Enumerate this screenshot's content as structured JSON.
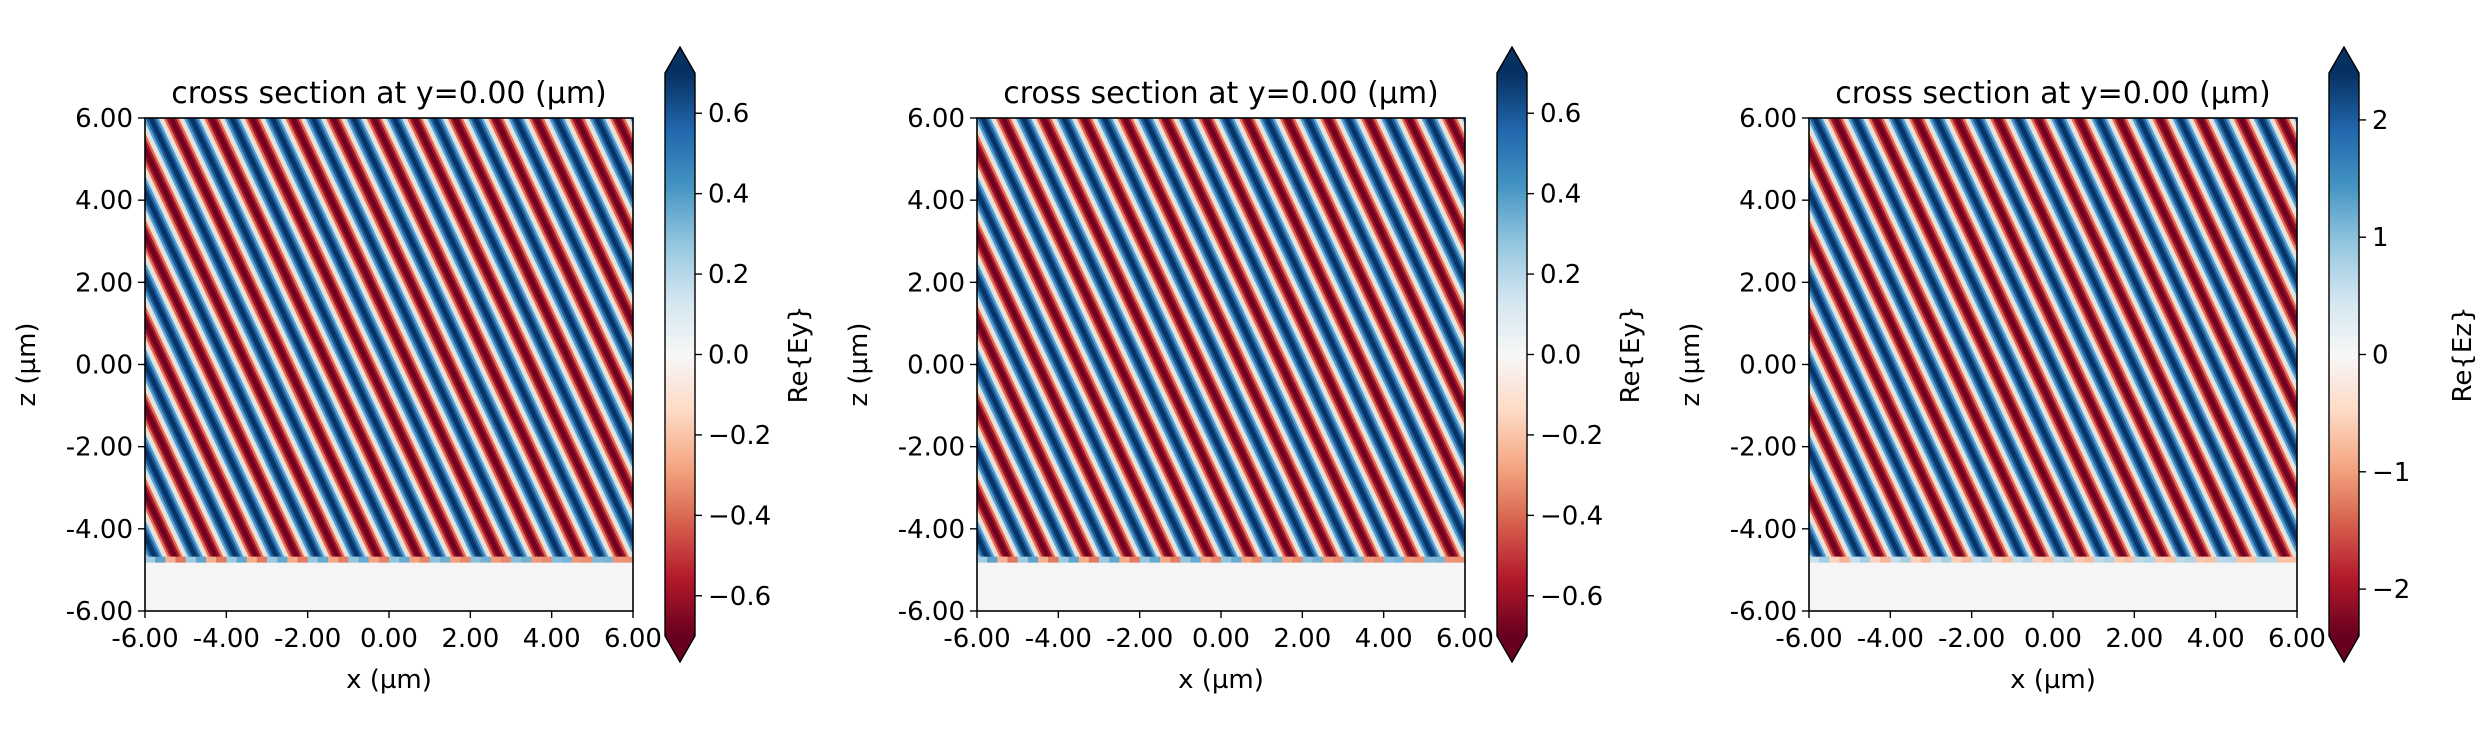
{
  "chart_data": [
    {
      "type": "heatmap",
      "title": "cross section at y=0.00 (µm)",
      "xlabel": "x (µm)",
      "ylabel": "z (µm)",
      "xlim": [
        -6.0,
        6.0
      ],
      "ylim": [
        -6.0,
        6.0
      ],
      "xticks": [
        -6.0,
        -4.0,
        -2.0,
        0.0,
        2.0,
        4.0,
        6.0
      ],
      "yticks": [
        -6.0,
        -4.0,
        -2.0,
        0.0,
        2.0,
        4.0,
        6.0
      ],
      "xticklabels": [
        "-6.00",
        "-4.00",
        "-2.00",
        "0.00",
        "2.00",
        "4.00",
        "6.00"
      ],
      "yticklabels": [
        "-6.00",
        "-4.00",
        "-2.00",
        "0.00",
        "2.00",
        "4.00",
        "6.00"
      ],
      "colorbar": {
        "label": "Re{Ey}",
        "vmin": -0.7,
        "vmax": 0.7,
        "ticks": [
          -0.6,
          -0.4,
          -0.2,
          0.0,
          0.2,
          0.4,
          0.6
        ],
        "ticklabels": [
          "−0.6",
          "−0.4",
          "−0.2",
          "0.0",
          "0.2",
          "0.4",
          "0.6"
        ],
        "extend": "both",
        "colormap": "RdBu"
      },
      "field": {
        "amplitude": 0.7,
        "kx": 6.3,
        "kz": 3.0,
        "z_min": -4.75,
        "edge_amplitude": 0.45,
        "background": "#f5f5f5"
      }
    },
    {
      "type": "heatmap",
      "title": "cross section at y=0.00 (µm)",
      "xlabel": "x (µm)",
      "ylabel": "z (µm)",
      "xlim": [
        -6.0,
        6.0
      ],
      "ylim": [
        -6.0,
        6.0
      ],
      "xticks": [
        -6.0,
        -4.0,
        -2.0,
        0.0,
        2.0,
        4.0,
        6.0
      ],
      "yticks": [
        -6.0,
        -4.0,
        -2.0,
        0.0,
        2.0,
        4.0,
        6.0
      ],
      "xticklabels": [
        "-6.00",
        "-4.00",
        "-2.00",
        "0.00",
        "2.00",
        "4.00",
        "6.00"
      ],
      "yticklabels": [
        "-6.00",
        "-4.00",
        "-2.00",
        "0.00",
        "2.00",
        "4.00",
        "6.00"
      ],
      "colorbar": {
        "label": "Re{Ey}",
        "vmin": -0.7,
        "vmax": 0.7,
        "ticks": [
          -0.6,
          -0.4,
          -0.2,
          0.0,
          0.2,
          0.4,
          0.6
        ],
        "ticklabels": [
          "−0.6",
          "−0.4",
          "−0.2",
          "0.0",
          "0.2",
          "0.4",
          "0.6"
        ],
        "extend": "both",
        "colormap": "RdBu"
      },
      "field": {
        "amplitude": 0.7,
        "kx": 6.3,
        "kz": 3.0,
        "z_min": -4.75,
        "edge_amplitude": 0.45,
        "background": "#f5f5f5"
      }
    },
    {
      "type": "heatmap",
      "title": "cross section at y=0.00 (µm)",
      "xlabel": "x (µm)",
      "ylabel": "z (µm)",
      "xlim": [
        -6.0,
        6.0
      ],
      "ylim": [
        -6.0,
        6.0
      ],
      "xticks": [
        -6.0,
        -4.0,
        -2.0,
        0.0,
        2.0,
        4.0,
        6.0
      ],
      "yticks": [
        -6.0,
        -4.0,
        -2.0,
        0.0,
        2.0,
        4.0,
        6.0
      ],
      "xticklabels": [
        "-6.00",
        "-4.00",
        "-2.00",
        "0.00",
        "2.00",
        "4.00",
        "6.00"
      ],
      "yticklabels": [
        "-6.00",
        "-4.00",
        "-2.00",
        "0.00",
        "2.00",
        "4.00",
        "6.00"
      ],
      "colorbar": {
        "label": "Re{Ez}",
        "vmin": -2.4,
        "vmax": 2.4,
        "ticks": [
          -2,
          -1,
          0,
          1,
          2
        ],
        "ticklabels": [
          "−2",
          "−1",
          "0",
          "1",
          "2"
        ],
        "extend": "both",
        "colormap": "RdBu"
      },
      "field": {
        "amplitude": 2.4,
        "kx": 6.3,
        "kz": 3.0,
        "z_min": -4.75,
        "edge_amplitude": 1.0,
        "background": "#f5f5f5"
      }
    }
  ]
}
